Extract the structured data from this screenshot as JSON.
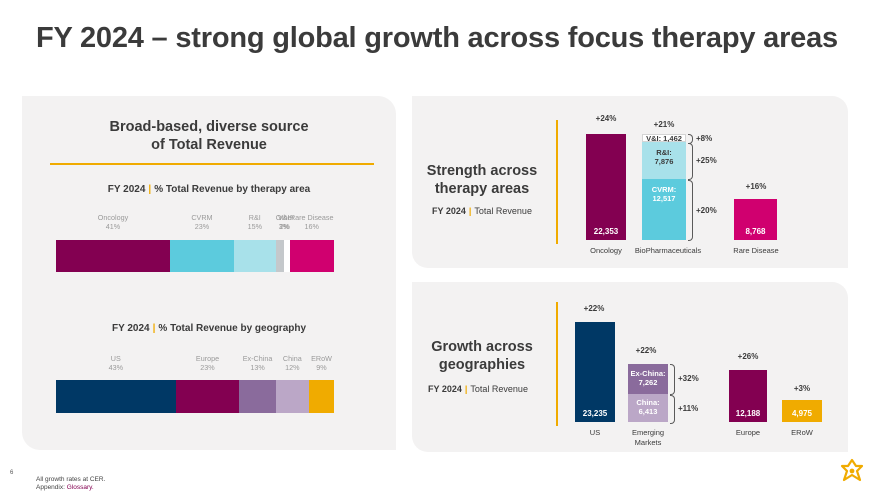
{
  "title": "FY 2024 – strong global growth across focus therapy areas",
  "left_panel": {
    "title_line1": "Broad-based, diverse source",
    "title_line2": "of Total Revenue",
    "therapy": {
      "subtitle_bold": "FY 2024",
      "subtitle_rest": "% Total Revenue by therapy area",
      "segments": [
        {
          "name": "Oncology",
          "pct": "41%",
          "value": 41,
          "color": "#830051"
        },
        {
          "name": "CVRM",
          "pct": "23%",
          "value": 23,
          "color": "#5ccbdd"
        },
        {
          "name": "R&I",
          "pct": "15%",
          "value": 15,
          "color": "#a8e1ea"
        },
        {
          "name": "V&I",
          "pct": "3%",
          "value": 3,
          "color": "#c4c8cb"
        },
        {
          "name": "Other",
          "pct": "2%",
          "value": 2,
          "color": "#ffffff"
        },
        {
          "name": "Rare Disease",
          "pct": "16%",
          "value": 16,
          "color": "#d0006f"
        }
      ]
    },
    "geography": {
      "subtitle_bold": "FY 2024",
      "subtitle_rest": "% Total Revenue by geography",
      "segments": [
        {
          "name": "US",
          "pct": "43%",
          "value": 43,
          "color": "#003865"
        },
        {
          "name": "Europe",
          "pct": "23%",
          "value": 23,
          "color": "#830051"
        },
        {
          "name": "Ex-China",
          "pct": "13%",
          "value": 13,
          "color": "#8a6b9c"
        },
        {
          "name": "China",
          "pct": "12%",
          "value": 12,
          "color": "#bba7c7"
        },
        {
          "name": "ERoW",
          "pct": "9%",
          "value": 9,
          "color": "#f0ab00"
        }
      ]
    }
  },
  "therapy_panel": {
    "title_line1": "Strength across",
    "title_line2": "therapy areas",
    "subtitle_bold": "FY 2024",
    "subtitle_rest": "Total Revenue",
    "oncology": {
      "label": "Oncology",
      "value": "22,353",
      "growth": "+24%",
      "color": "#830051"
    },
    "biopharma": {
      "label": "BioPharmaceuticals",
      "growth": "+21%",
      "cvrm": {
        "name": "CVRM:",
        "value": "12,517",
        "growth": "+20%",
        "color": "#5ccbdd"
      },
      "ri": {
        "name": "R&I:",
        "value": "7,876",
        "growth": "+25%",
        "color": "#a8e1ea"
      },
      "vi": {
        "text": "V&I: 1,462",
        "growth": "+8%",
        "color": "#ffffff"
      }
    },
    "rare": {
      "label": "Rare Disease",
      "value": "8,768",
      "growth": "+16%",
      "color": "#d0006f"
    }
  },
  "geo_panel": {
    "title_line1": "Growth across",
    "title_line2": "geographies",
    "subtitle_bold": "FY 2024",
    "subtitle_rest": "Total Revenue",
    "us": {
      "label": "US",
      "value": "23,235",
      "growth": "+22%",
      "color": "#003865"
    },
    "em": {
      "label_line1": "Emerging",
      "label_line2": "Markets",
      "growth": "+22%",
      "exchina": {
        "name": "Ex-China:",
        "value": "7,262",
        "growth": "+32%",
        "color": "#8a6b9c"
      },
      "china": {
        "name": "China:",
        "value": "6,413",
        "growth": "+11%",
        "color": "#bba7c7"
      }
    },
    "europe": {
      "label": "Europe",
      "value": "12,188",
      "growth": "+26%",
      "color": "#830051"
    },
    "erow": {
      "label": "ERoW",
      "value": "4,975",
      "growth": "+3%",
      "color": "#f0ab00"
    }
  },
  "footer": {
    "page_number": "6",
    "note1": "All growth rates at CER.",
    "note2_prefix": "Appendix: ",
    "note2_link": "Glossary."
  },
  "colors": {
    "accent": "#f0ab00",
    "magenta": "#830051",
    "navy": "#003865"
  }
}
